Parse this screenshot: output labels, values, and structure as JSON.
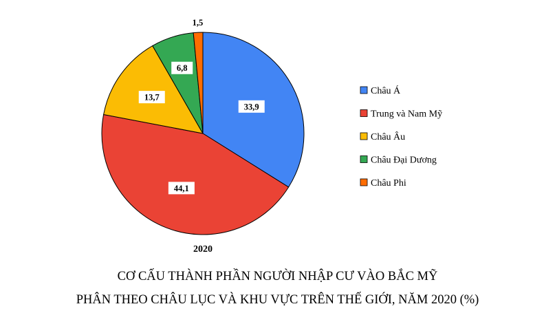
{
  "chart_data": {
    "type": "pie",
    "title": "CƠ CẤU THÀNH PHẦN NGƯỜI NHẬP CƯ VÀO BẮC MỸ",
    "subtitle": "PHÂN THEO CHÂU LỤC VÀ KHU VỰC TRÊN THẾ GIỚI, NĂM 2020 (%)",
    "year_label": "2020",
    "legend_position": "right",
    "slices": [
      {
        "name": "Châu Á",
        "value": 33.9,
        "label": "33,9",
        "color": "#4285F4"
      },
      {
        "name": "Trung và Nam Mỹ",
        "value": 44.1,
        "label": "44,1",
        "color": "#EA4335"
      },
      {
        "name": "Châu Âu",
        "value": 13.7,
        "label": "13,7",
        "color": "#FBBC04"
      },
      {
        "name": "Châu Đại Dương",
        "value": 6.8,
        "label": "6,8",
        "color": "#34A853"
      },
      {
        "name": "Châu Phi",
        "value": 1.5,
        "label": "1,5",
        "color": "#FF6D01"
      }
    ]
  }
}
